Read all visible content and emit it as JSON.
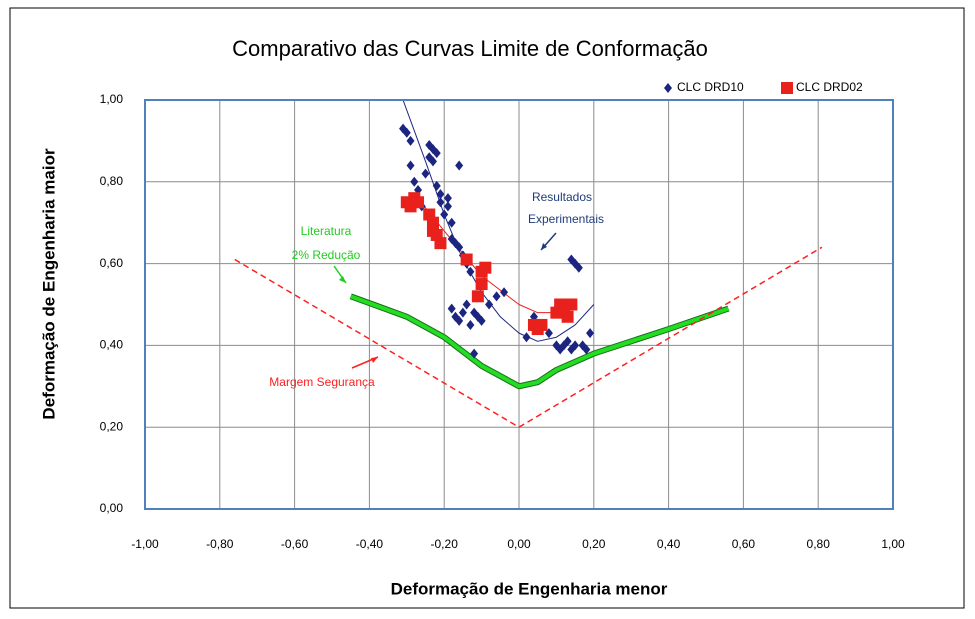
{
  "chart_data": {
    "type": "scatter",
    "title": "Comparativo das Curvas Limite de Conformação",
    "x_label": "Deformação de Engenharia menor",
    "y_label": "Deformação de Engenharia maior",
    "xlim": [
      -1,
      1
    ],
    "ylim": [
      0,
      1
    ],
    "xticks": [
      {
        "value": -1,
        "label": "-1,00"
      },
      {
        "value": -0.8,
        "label": "-0,80"
      },
      {
        "value": -0.6,
        "label": "-0,60"
      },
      {
        "value": -0.4,
        "label": "-0,40"
      },
      {
        "value": -0.2,
        "label": "-0,20"
      },
      {
        "value": 0,
        "label": "0,00"
      },
      {
        "value": 0.2,
        "label": "0,20"
      },
      {
        "value": 0.4,
        "label": "0,40"
      },
      {
        "value": 0.6,
        "label": "0,60"
      },
      {
        "value": 0.8,
        "label": "0,80"
      },
      {
        "value": 1,
        "label": "1,00"
      }
    ],
    "yticks": [
      {
        "value": 0,
        "label": "0,00"
      },
      {
        "value": 0.2,
        "label": "0,20"
      },
      {
        "value": 0.4,
        "label": "0,40"
      },
      {
        "value": 0.6,
        "label": "0,60"
      },
      {
        "value": 0.8,
        "label": "0,80"
      },
      {
        "value": 1,
        "label": "1,00"
      }
    ],
    "grid": true,
    "legend": "top-right",
    "series": [
      {
        "name": "CLC DRD10",
        "color": "#1c2580",
        "marker": "diamond",
        "x": [
          -0.31,
          -0.3,
          -0.29,
          -0.29,
          -0.28,
          -0.27,
          -0.26,
          -0.25,
          -0.24,
          -0.24,
          -0.23,
          -0.23,
          -0.22,
          -0.22,
          -0.21,
          -0.21,
          -0.2,
          -0.19,
          -0.19,
          -0.18,
          -0.18,
          -0.17,
          -0.16,
          -0.16,
          -0.15,
          -0.14,
          -0.13,
          -0.18,
          -0.17,
          -0.16,
          -0.15,
          -0.14,
          -0.13,
          -0.12,
          -0.11,
          -0.1,
          -0.12,
          -0.08,
          -0.06,
          -0.04,
          0.02,
          0.04,
          0.06,
          0.08,
          0.1,
          0.1,
          0.11,
          0.12,
          0.13,
          0.14,
          0.15,
          0.14,
          0.15,
          0.16,
          0.17,
          0.19,
          0.18
        ],
        "values": [
          0.93,
          0.92,
          0.9,
          0.84,
          0.8,
          0.78,
          0.74,
          0.82,
          0.89,
          0.86,
          0.88,
          0.85,
          0.87,
          0.79,
          0.77,
          0.75,
          0.72,
          0.76,
          0.74,
          0.7,
          0.66,
          0.65,
          0.84,
          0.64,
          0.62,
          0.6,
          0.58,
          0.49,
          0.47,
          0.46,
          0.48,
          0.5,
          0.45,
          0.48,
          0.47,
          0.46,
          0.38,
          0.5,
          0.52,
          0.53,
          0.42,
          0.47,
          0.44,
          0.43,
          0.49,
          0.4,
          0.39,
          0.4,
          0.41,
          0.39,
          0.4,
          0.61,
          0.6,
          0.59,
          0.4,
          0.43,
          0.39
        ]
      },
      {
        "name": "CLC DRD02",
        "color": "#e8211c",
        "marker": "square",
        "x": [
          -0.3,
          -0.29,
          -0.28,
          -0.27,
          -0.24,
          -0.23,
          -0.23,
          -0.22,
          -0.21,
          -0.14,
          -0.1,
          -0.1,
          -0.11,
          -0.09,
          0.04,
          0.05,
          0.06,
          0.1,
          0.11,
          0.12,
          0.14,
          0.13
        ],
        "values": [
          0.75,
          0.74,
          0.76,
          0.75,
          0.72,
          0.7,
          0.68,
          0.67,
          0.65,
          0.61,
          0.58,
          0.55,
          0.52,
          0.59,
          0.45,
          0.44,
          0.45,
          0.48,
          0.5,
          0.49,
          0.5,
          0.47
        ]
      }
    ],
    "lines": [
      {
        "color": "#22dd22",
        "style": "thick",
        "x": [
          -0.45,
          -0.3,
          -0.2,
          -0.1,
          0,
          0.05,
          0.1,
          0.2,
          0.3,
          0.4,
          0.56
        ],
        "values": [
          0.52,
          0.47,
          0.42,
          0.35,
          0.3,
          0.31,
          0.34,
          0.38,
          0.41,
          0.44,
          0.49
        ]
      },
      {
        "color": "#ff2020",
        "style": "dashed",
        "x": [
          -0.76,
          0,
          0.81
        ],
        "values": [
          0.61,
          0.2,
          0.64
        ]
      },
      {
        "color": "#1c2580",
        "style": "thin",
        "x": [
          -0.31,
          -0.25,
          -0.2,
          -0.15,
          -0.1,
          -0.05,
          0,
          0.05,
          0.1,
          0.15,
          0.2
        ],
        "values": [
          1.0,
          0.85,
          0.72,
          0.61,
          0.53,
          0.47,
          0.43,
          0.41,
          0.42,
          0.45,
          0.5
        ]
      },
      {
        "color": "#e8211c",
        "style": "thin",
        "x": [
          -0.28,
          -0.2,
          -0.1,
          0,
          0.05,
          0.1,
          0.13
        ],
        "values": [
          0.77,
          0.68,
          0.57,
          0.5,
          0.48,
          0.48,
          0.49
        ]
      }
    ],
    "annotations": [
      {
        "text": "Literatura",
        "color": "#22cc22"
      },
      {
        "text": "2% Redução",
        "color": "#22cc22"
      },
      {
        "text": "Resultados",
        "color": "#1f3c7a"
      },
      {
        "text": "Experimentais",
        "color": "#1f3c7a"
      },
      {
        "text": "Margem Segurança",
        "color": "#ff2020"
      }
    ]
  }
}
